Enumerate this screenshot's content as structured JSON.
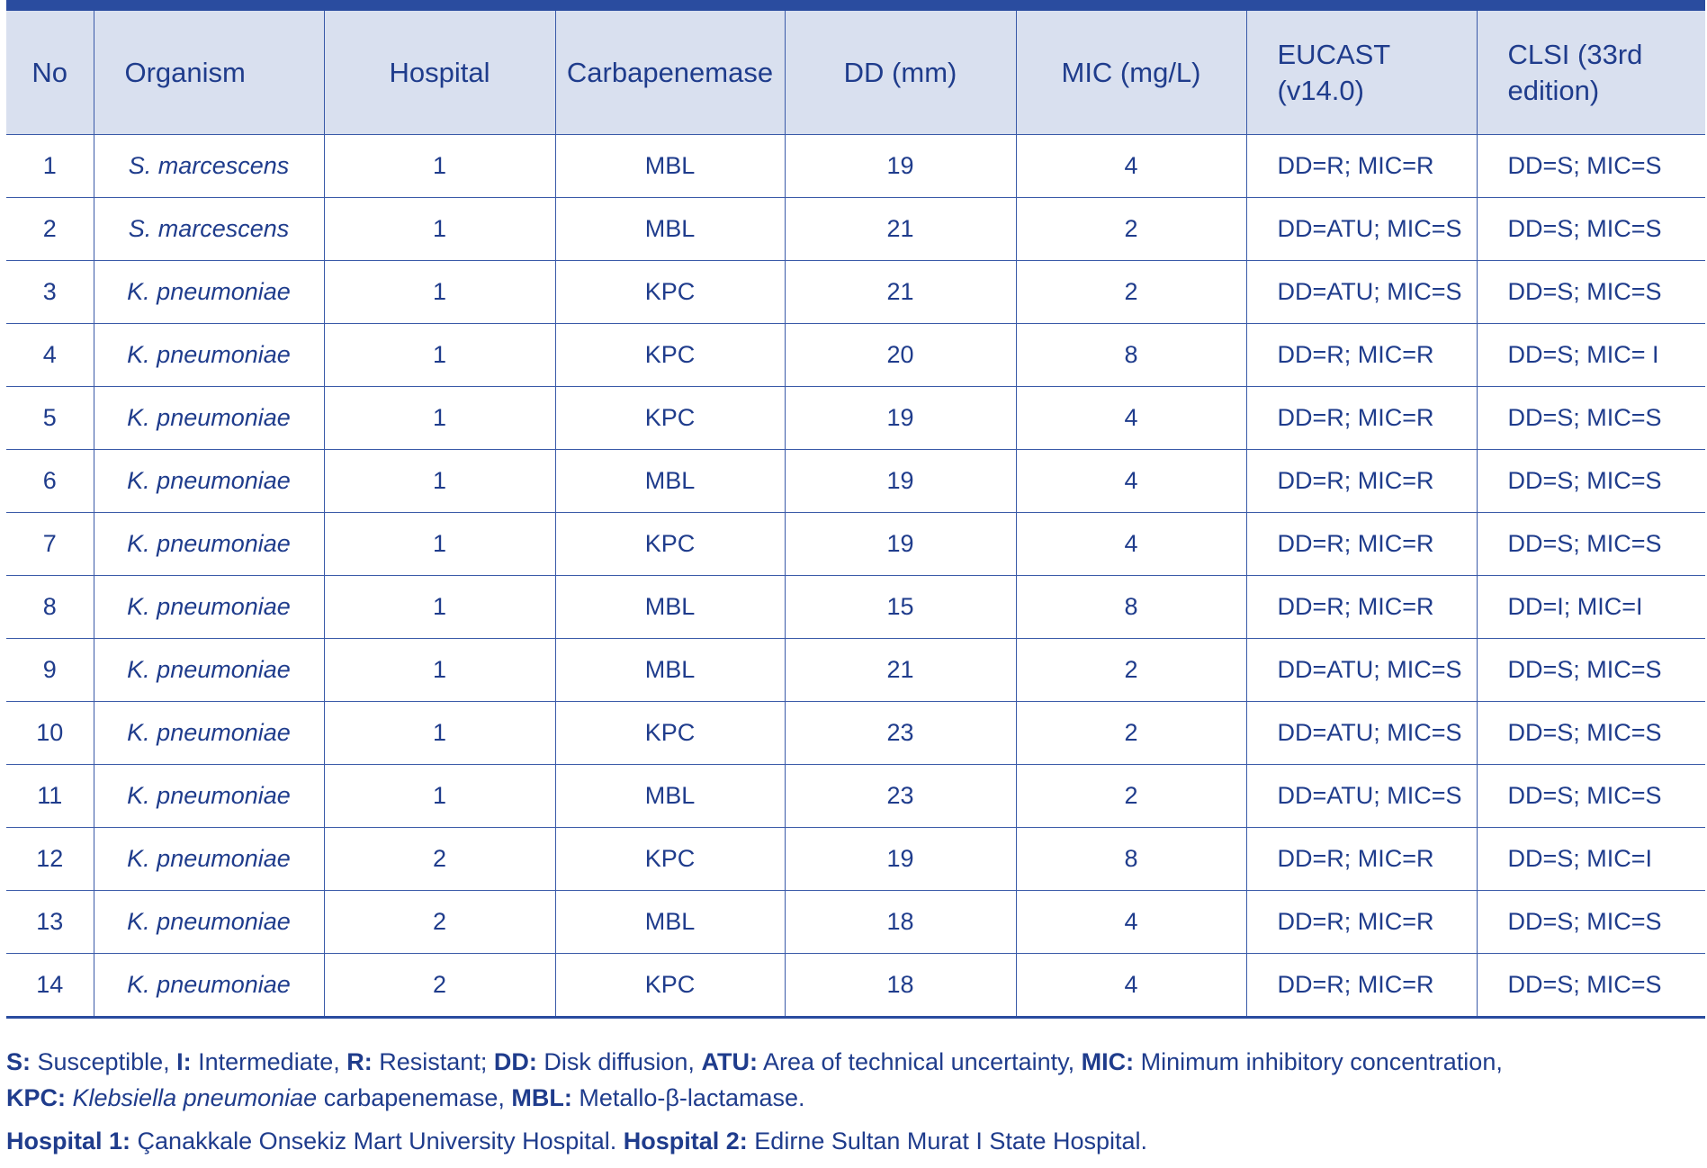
{
  "table": {
    "header": [
      "No",
      "Organism",
      "Hospital",
      "Carbapenemase",
      "DD (mm)",
      "MIC (mg/L)",
      "EUCAST (v14.0)",
      "CLSI (33rd edition)"
    ],
    "rows": [
      [
        1,
        "S. marcescens",
        1,
        "MBL",
        19,
        4,
        "DD=R; MIC=R",
        "DD=S; MIC=S"
      ],
      [
        2,
        "S. marcescens",
        1,
        "MBL",
        21,
        2,
        "DD=ATU; MIC=S",
        "DD=S; MIC=S"
      ],
      [
        3,
        "K. pneumoniae",
        1,
        "KPC",
        21,
        2,
        "DD=ATU; MIC=S",
        "DD=S; MIC=S"
      ],
      [
        4,
        "K. pneumoniae",
        1,
        "KPC",
        20,
        8,
        "DD=R; MIC=R",
        "DD=S; MIC= I"
      ],
      [
        5,
        "K. pneumoniae",
        1,
        "KPC",
        19,
        4,
        "DD=R; MIC=R",
        "DD=S; MIC=S"
      ],
      [
        6,
        "K. pneumoniae",
        1,
        "MBL",
        19,
        4,
        "DD=R; MIC=R",
        "DD=S; MIC=S"
      ],
      [
        7,
        "K. pneumoniae",
        1,
        "KPC",
        19,
        4,
        "DD=R; MIC=R",
        "DD=S; MIC=S"
      ],
      [
        8,
        "K. pneumoniae",
        1,
        "MBL",
        15,
        8,
        "DD=R; MIC=R",
        "DD=I; MIC=I"
      ],
      [
        9,
        "K. pneumoniae",
        1,
        "MBL",
        21,
        2,
        "DD=ATU; MIC=S",
        "DD=S; MIC=S"
      ],
      [
        10,
        "K. pneumoniae",
        1,
        "KPC",
        23,
        2,
        "DD=ATU; MIC=S",
        "DD=S; MIC=S"
      ],
      [
        11,
        "K. pneumoniae",
        1,
        "MBL",
        23,
        2,
        "DD=ATU; MIC=S",
        "DD=S; MIC=S"
      ],
      [
        12,
        "K. pneumoniae",
        2,
        "KPC",
        19,
        8,
        "DD=R; MIC=R",
        "DD=S; MIC=I"
      ],
      [
        13,
        "K. pneumoniae",
        2,
        "MBL",
        18,
        4,
        "DD=R; MIC=R",
        "DD=S; MIC=S"
      ],
      [
        14,
        "K. pneumoniae",
        2,
        "KPC",
        18,
        4,
        "DD=R; MIC=R",
        "DD=S; MIC=S"
      ]
    ]
  },
  "footnotes": [
    [
      "S:",
      "Susceptible,",
      "I:",
      "Intermediate,",
      "R:",
      "Resistant;",
      "DD:",
      "Disk diffusion,",
      "ATU:",
      "Area of technical uncertainty,",
      "MIC:",
      "Minimum inhibitory concentration,"
    ],
    [
      "KPC:",
      "Klebsiella pneumoniae",
      "carbapenemase,",
      "MBL:",
      "Metallo-β-lactamase."
    ],
    [
      "Hospital 1:",
      "Çanakkale Onsekiz Mart University Hospital.",
      "Hospital 2:",
      "Edirne Sultan Murat I State Hospital."
    ]
  ]
}
